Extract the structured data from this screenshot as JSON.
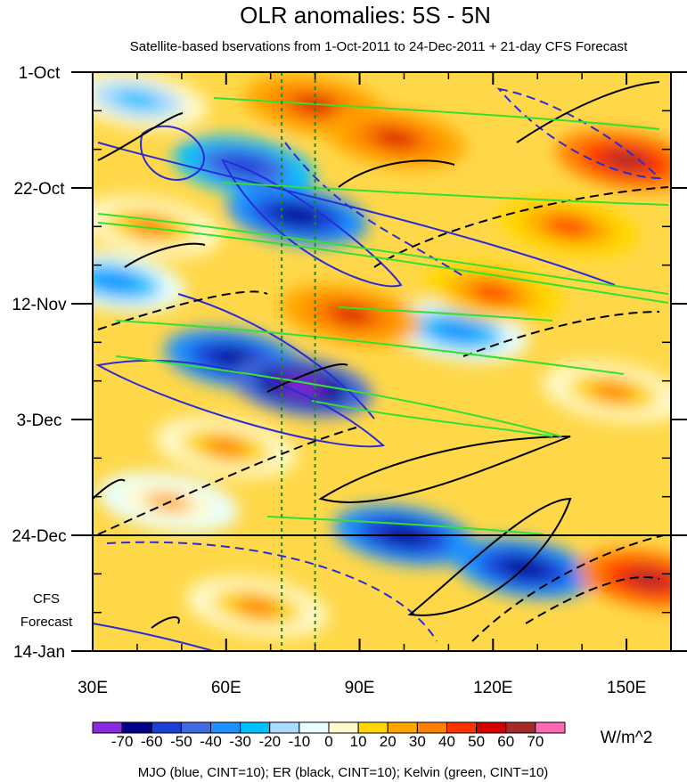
{
  "chart_data": {
    "type": "heatmap",
    "title": "OLR anomalies: 5S - 5N",
    "subtitle": "Satellite-based bservations from 1-Oct-2011 to 24-Dec-2011 + 21-day CFS Forecast",
    "x_axis": {
      "range": [
        30,
        160
      ],
      "ticks": [
        30,
        60,
        90,
        120,
        150
      ],
      "tick_labels": [
        "30E",
        "60E",
        "90E",
        "120E",
        "150E"
      ]
    },
    "y_axis": {
      "range_days": [
        0,
        105
      ],
      "tick_days": [
        0,
        21,
        42,
        63,
        84,
        105
      ],
      "tick_labels": [
        "1-Oct",
        "22-Oct",
        "12-Nov",
        "3-Dec",
        "24-Dec",
        "14-Jan"
      ],
      "observation_end_day": 84
    },
    "reference_longitudes": [
      72.5,
      80
    ],
    "forecast_label": [
      "CFS",
      "Forecast"
    ],
    "colorbar": {
      "levels": [
        "-70",
        "-60",
        "-50",
        "-40",
        "-30",
        "-20",
        "-10",
        "0",
        "10",
        "20",
        "30",
        "40",
        "50",
        "60",
        "70"
      ],
      "colors": [
        "#8a2be2",
        "#00008b",
        "#1c3fd6",
        "#4169e1",
        "#1e90ff",
        "#00bfff",
        "#aadcff",
        "#e8ffff",
        "#fffacd",
        "#ffd700",
        "#ffa500",
        "#ff7f00",
        "#ff3300",
        "#d70000",
        "#a52a2a",
        "#ff69b4"
      ],
      "units": "W/m^2"
    },
    "anomaly_features": [
      {
        "lon": 64,
        "day": 17,
        "value": -60
      },
      {
        "lon": 76,
        "day": 26,
        "value": -70
      },
      {
        "lon": 62,
        "day": 52,
        "value": -70
      },
      {
        "lon": 77,
        "day": 57,
        "value": -80
      },
      {
        "lon": 100,
        "day": 84,
        "value": -70
      },
      {
        "lon": 127,
        "day": 90,
        "value": -70
      },
      {
        "lon": 112,
        "day": 47,
        "value": -40
      },
      {
        "lon": 40,
        "day": 5,
        "value": -30
      },
      {
        "lon": 35,
        "day": 38,
        "value": -40
      },
      {
        "lon": 80,
        "day": 6,
        "value": 50
      },
      {
        "lon": 98,
        "day": 12,
        "value": 50
      },
      {
        "lon": 150,
        "day": 16,
        "value": 60
      },
      {
        "lon": 137,
        "day": 28,
        "value": 40
      },
      {
        "lon": 88,
        "day": 44,
        "value": 50
      },
      {
        "lon": 120,
        "day": 40,
        "value": 40
      },
      {
        "lon": 43,
        "day": 28,
        "value": 30
      },
      {
        "lon": 155,
        "day": 92,
        "value": 60
      },
      {
        "lon": 67,
        "day": 97,
        "value": 30
      },
      {
        "lon": 47,
        "day": 78,
        "value": 20
      },
      {
        "lon": 147,
        "day": 58,
        "value": 30
      },
      {
        "lon": 60,
        "day": 68,
        "value": 30
      }
    ],
    "contour_overlays": [
      {
        "name": "MJO",
        "color": "blue",
        "cint": 10
      },
      {
        "name": "ER",
        "color": "black",
        "cint": 10
      },
      {
        "name": "Kelvin",
        "color": "green",
        "cint": 10
      }
    ]
  },
  "footer": "MJO (blue, CINT=10); ER (black, CINT=10); Kelvin (green, CINT=10)"
}
